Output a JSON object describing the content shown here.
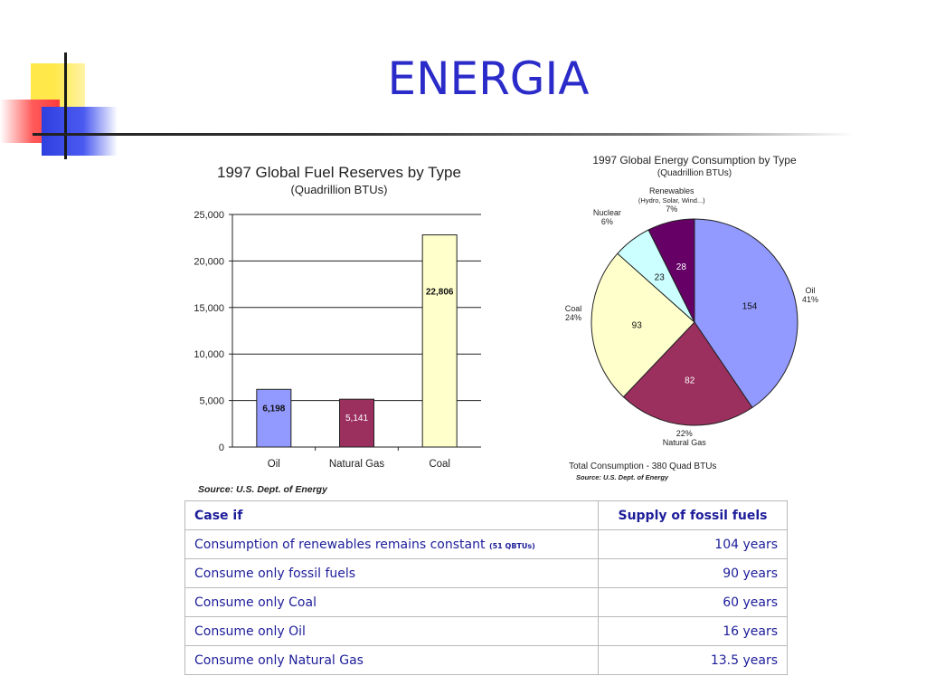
{
  "slide": {
    "title": "ENERGIA"
  },
  "chart_data": [
    {
      "type": "bar",
      "title": "1997 Global Fuel Reserves by Type",
      "subtitle": "(Quadrillion BTUs)",
      "categories": [
        "Oil",
        "Natural Gas",
        "Coal"
      ],
      "values": [
        6198,
        5141,
        22806
      ],
      "value_labels": [
        "6,198",
        "5,141",
        "22,806"
      ],
      "colors": [
        "#9299ff",
        "#9b2f5e",
        "#ffffcc"
      ],
      "ylim": [
        0,
        25000
      ],
      "yticks": [
        0,
        5000,
        10000,
        15000,
        20000,
        25000
      ],
      "ytick_labels": [
        "0",
        "5,000",
        "10,000",
        "15,000",
        "20,000",
        "25,000"
      ],
      "grid": true,
      "source": "Source:  U.S. Dept. of Energy"
    },
    {
      "type": "pie",
      "title": "1997 Global Energy Consumption by Type",
      "subtitle": "(Quadrillion BTUs)",
      "slices": [
        {
          "label": "Oil",
          "value": 154,
          "percent": "41%",
          "color": "#9299ff"
        },
        {
          "label": "Natural Gas",
          "value": 82,
          "percent": "22%",
          "color": "#9b2f5e"
        },
        {
          "label": "Coal",
          "value": 93,
          "percent": "24%",
          "color": "#ffffcc"
        },
        {
          "label": "Nuclear",
          "value": 23,
          "percent": "6%",
          "color": "#ccffff"
        },
        {
          "label": "Renewables",
          "sublabel": "(Hydro, Solar, Wind...)",
          "value": 28,
          "percent": "7%",
          "color": "#660066"
        }
      ],
      "total": "Total Consumption  -  380 Quad BTUs",
      "source": "Source:  U.S. Dept. of Energy"
    }
  ],
  "table": {
    "headers": [
      "Case if",
      "Supply of fossil fuels"
    ],
    "rows": [
      {
        "case": "Consumption of renewables remains constant",
        "note": "(51 QBTUs)",
        "supply": "104 years"
      },
      {
        "case": "Consume only fossil fuels",
        "note": "",
        "supply": "90 years"
      },
      {
        "case": "Consume only Coal",
        "note": "",
        "supply": "60 years"
      },
      {
        "case": "Consume only Oil",
        "note": "",
        "supply": "16 years"
      },
      {
        "case": "Consume only Natural Gas",
        "note": "",
        "supply": "13.5 years"
      }
    ]
  }
}
